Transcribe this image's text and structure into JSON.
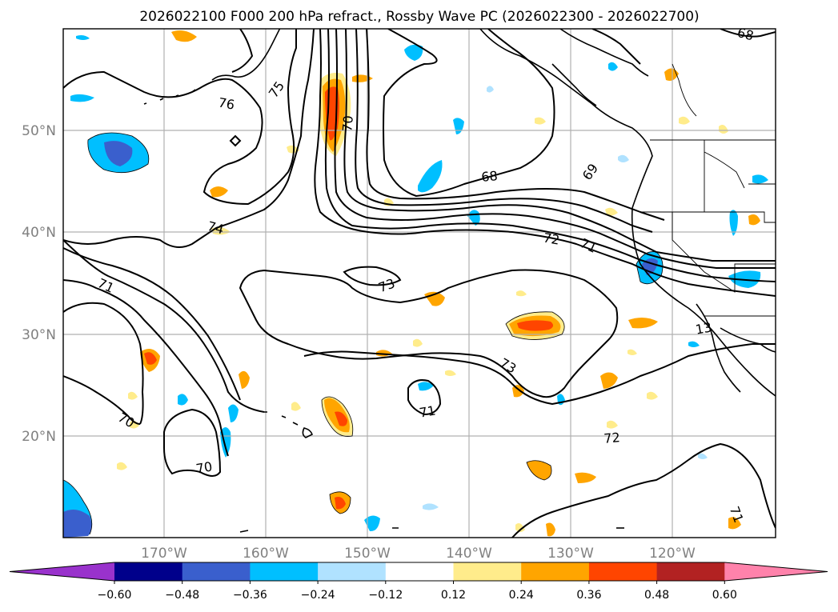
{
  "title": "2026022100 F000 200 hPa refract., Rossby Wave PC (2026022300 - 2026022700)",
  "lat_labels": [
    "50°N",
    "40°N",
    "30°N",
    "20°N"
  ],
  "lon_labels": [
    "170°W",
    "160°W",
    "150°W",
    "140°W",
    "130°W",
    "120°W"
  ],
  "contour_labels": [
    "68",
    "76",
    "75",
    "70",
    "68",
    "69",
    "74",
    "72",
    "71",
    "73",
    "71",
    "73",
    "13",
    "71",
    "72",
    "70",
    "70",
    "71"
  ],
  "colorbar": {
    "tick_labels": [
      "−0.60",
      "−0.48",
      "−0.36",
      "−0.24",
      "−0.12",
      "0.12",
      "0.24",
      "0.36",
      "0.48",
      "0.60"
    ],
    "colors": [
      "#9932cc",
      "#00008b",
      "#3a5fcd",
      "#00bfff",
      "#b0e2ff",
      "#ffffff",
      "#ffec8b",
      "#ffa500",
      "#ff4500",
      "#b22222",
      "#ff82ab"
    ]
  }
}
